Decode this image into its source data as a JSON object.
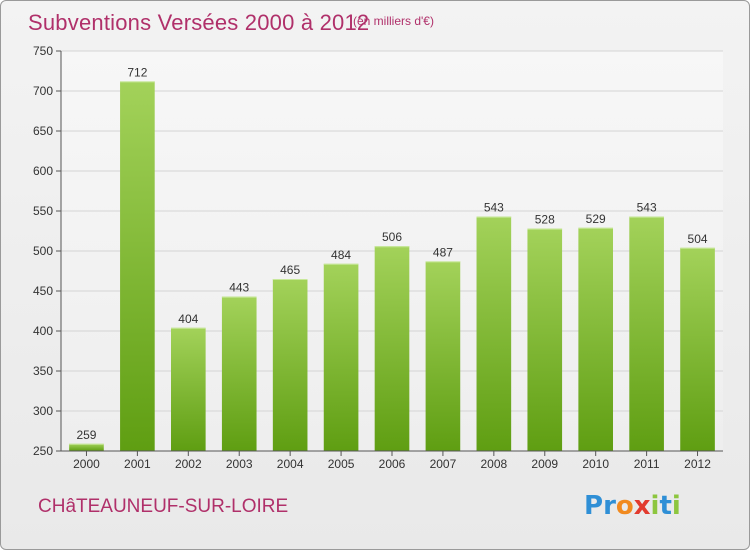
{
  "header": {
    "title": "Subventions Versées 2000 à 2012",
    "subtitle": "(en milliers d'€)"
  },
  "footer": {
    "city": "CHâTEAUNEUF-SUR-LOIRE",
    "logo_letters": [
      "P",
      "r",
      "o",
      "x",
      "i",
      "t",
      "i"
    ],
    "logo_colors": [
      "#2f8fd6",
      "#2f8fd6",
      "#f18a1f",
      "#e23b2e",
      "#8dc63f",
      "#2f8fd6",
      "#8dc63f"
    ]
  },
  "chart_data": {
    "type": "bar",
    "title": "Subventions Versées 2000 à 2012",
    "subtitle": "(en milliers d'€)",
    "xlabel": "",
    "ylabel": "",
    "categories": [
      "2000",
      "2001",
      "2002",
      "2003",
      "2004",
      "2005",
      "2006",
      "2007",
      "2008",
      "2009",
      "2010",
      "2011",
      "2012"
    ],
    "values": [
      259,
      712,
      404,
      443,
      465,
      484,
      506,
      487,
      543,
      528,
      529,
      543,
      504
    ],
    "ylim": [
      250,
      750
    ],
    "yticks": [
      250,
      300,
      350,
      400,
      450,
      500,
      550,
      600,
      650,
      700,
      750
    ],
    "grid": true,
    "bar_color_top": "#a3d25a",
    "bar_color_bottom": "#5f9e12"
  }
}
